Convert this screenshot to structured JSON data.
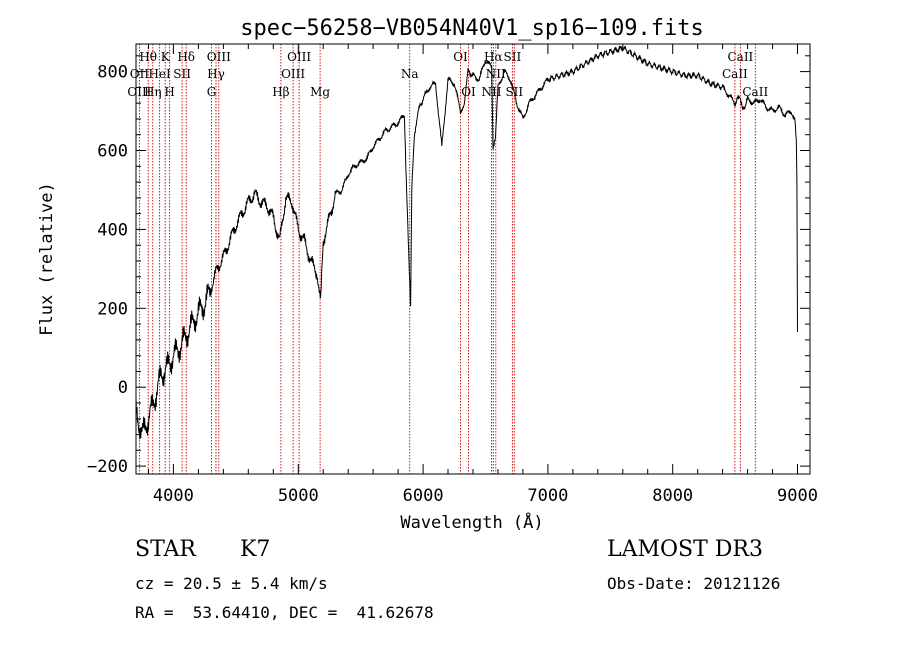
{
  "chart_data": {
    "type": "line",
    "title": "spec−56258−VB054N40V1_sp16−109.fits",
    "xlabel": "Wavelength (Å)",
    "ylabel": "Flux (relative)",
    "xlim": [
      3700,
      9100
    ],
    "ylim": [
      -220,
      870
    ],
    "xticks": [
      4000,
      5000,
      6000,
      7000,
      8000,
      9000
    ],
    "xtick_labels": [
      "4000",
      "5000",
      "6000",
      "7000",
      "8000",
      "9000"
    ],
    "yticks": [
      -200,
      0,
      200,
      400,
      600,
      800
    ],
    "ytick_labels": [
      "−200",
      "0",
      "200",
      "400",
      "600",
      "800"
    ],
    "grid": false,
    "series": [
      {
        "name": "flux",
        "color": "#000000",
        "x": [
          3700,
          3750,
          3800,
          3850,
          3900,
          3950,
          4000,
          4050,
          4100,
          4150,
          4200,
          4250,
          4300,
          4350,
          4400,
          4450,
          4500,
          4550,
          4600,
          4650,
          4700,
          4750,
          4800,
          4850,
          4900,
          4950,
          5000,
          5050,
          5100,
          5150,
          5180,
          5200,
          5250,
          5300,
          5350,
          5400,
          5450,
          5500,
          5550,
          5600,
          5650,
          5700,
          5750,
          5800,
          5850,
          5870,
          5890,
          5900,
          5910,
          5930,
          5960,
          6000,
          6050,
          6100,
          6150,
          6200,
          6250,
          6300,
          6330,
          6360,
          6400,
          6450,
          6500,
          6550,
          6560,
          6580,
          6600,
          6650,
          6700,
          6750,
          6800,
          6850,
          6900,
          6950,
          7000,
          7100,
          7200,
          7300,
          7400,
          7500,
          7600,
          7700,
          7800,
          7900,
          8000,
          8100,
          8200,
          8300,
          8400,
          8450,
          8500,
          8540,
          8560,
          8600,
          8650,
          8700,
          8750,
          8800,
          8850,
          8900,
          8950,
          8980,
          8990,
          8995,
          9000
        ],
        "y": [
          -60,
          -120,
          -80,
          -30,
          30,
          50,
          80,
          100,
          130,
          160,
          190,
          210,
          250,
          300,
          330,
          370,
          410,
          440,
          470,
          490,
          470,
          460,
          430,
          370,
          480,
          470,
          400,
          370,
          320,
          290,
          220,
          370,
          430,
          490,
          500,
          540,
          560,
          570,
          580,
          610,
          630,
          650,
          660,
          670,
          690,
          480,
          300,
          200,
          500,
          640,
          700,
          730,
          760,
          770,
          610,
          780,
          770,
          700,
          720,
          800,
          790,
          780,
          830,
          810,
          600,
          640,
          760,
          800,
          780,
          720,
          680,
          720,
          740,
          760,
          780,
          790,
          800,
          820,
          840,
          850,
          860,
          840,
          820,
          810,
          800,
          790,
          790,
          770,
          760,
          740,
          720,
          740,
          700,
          730,
          720,
          730,
          710,
          700,
          710,
          690,
          700,
          680,
          630,
          520,
          140
        ]
      }
    ],
    "line_labels": [
      {
        "name": "Hθ",
        "x": 3798,
        "row": 1
      },
      {
        "name": "OII",
        "x": 3727,
        "row": 2
      },
      {
        "name": "OIII",
        "x": 3727,
        "row": 3
      },
      {
        "name": "K",
        "x": 3934,
        "row": 1
      },
      {
        "name": "HeI",
        "x": 3889,
        "row": 2
      },
      {
        "name": "Hη",
        "x": 3835,
        "row": 3
      },
      {
        "name": "Hδ",
        "x": 4102,
        "row": 1
      },
      {
        "name": "SII",
        "x": 4069,
        "row": 2
      },
      {
        "name": "H",
        "x": 3969,
        "row": 3
      },
      {
        "name": "OIII",
        "x": 4363,
        "row": 1
      },
      {
        "name": "Hγ",
        "x": 4341,
        "row": 2
      },
      {
        "name": "G",
        "x": 4305,
        "row": 3
      },
      {
        "name": "OIII",
        "x": 5007,
        "row": 1
      },
      {
        "name": "OIII",
        "x": 4959,
        "row": 2
      },
      {
        "name": "Hβ",
        "x": 4861,
        "row": 3
      },
      {
        "name": "Mg",
        "x": 5175,
        "row": 3
      },
      {
        "name": "Na",
        "x": 5893,
        "row": 2
      },
      {
        "name": "OI",
        "x": 6300,
        "row": 1
      },
      {
        "name": "OI",
        "x": 6364,
        "row": 3
      },
      {
        "name": "Hα",
        "x": 6563,
        "row": 1
      },
      {
        "name": "SII",
        "x": 6716,
        "row": 1
      },
      {
        "name": "NII",
        "x": 6583,
        "row": 2
      },
      {
        "name": "NII",
        "x": 6548,
        "row": 3
      },
      {
        "name": "SII",
        "x": 6731,
        "row": 3
      },
      {
        "name": "CaII",
        "x": 8542,
        "row": 1
      },
      {
        "name": "CaII",
        "x": 8498,
        "row": 2
      },
      {
        "name": "CaII",
        "x": 8662,
        "row": 3
      }
    ],
    "line_positions": [
      3727,
      3798,
      3835,
      3889,
      3934,
      3969,
      4069,
      4102,
      4305,
      4341,
      4363,
      4861,
      4959,
      5007,
      5175,
      5893,
      6300,
      6364,
      6548,
      6563,
      6583,
      6716,
      6731,
      8498,
      8542,
      8662
    ]
  },
  "footer": {
    "class_label": "STAR",
    "subclass": "K7",
    "survey": "LAMOST DR3",
    "velocity": "cz = 20.5 ± 5.4 km/s",
    "obs_date": "Obs-Date: 20121126",
    "coords": "RA =  53.64410, DEC =  41.62678"
  }
}
